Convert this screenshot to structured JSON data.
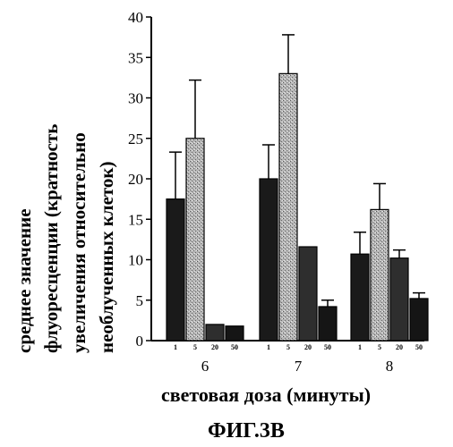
{
  "chart_data": {
    "type": "bar",
    "ylabel_lines": [
      "среднее значение",
      "флуоресценции (кратность",
      "увеличения относительно",
      "необлученных клеток)"
    ],
    "xlabel": "световая доза (минуты)",
    "caption": "ФИГ.3В",
    "ylim": [
      0,
      40
    ],
    "yticks": [
      0,
      5,
      10,
      15,
      20,
      25,
      30,
      35,
      40
    ],
    "categories": [
      "6",
      "7",
      "8"
    ],
    "sub_labels": [
      "1",
      "5",
      "20",
      "50"
    ],
    "series": [
      {
        "values": [
          17.5,
          20.0,
          10.7
        ],
        "errors": [
          5.8,
          4.2,
          2.7
        ]
      },
      {
        "values": [
          25.0,
          33.0,
          16.2
        ],
        "errors": [
          7.2,
          4.8,
          3.2
        ]
      },
      {
        "values": [
          2.0,
          11.6,
          10.2
        ],
        "errors": [
          0.0,
          0.0,
          1.0
        ]
      },
      {
        "values": [
          1.8,
          4.2,
          5.2
        ],
        "errors": [
          0.0,
          0.8,
          0.7
        ]
      }
    ],
    "colors": [
      "#1a1a1a",
      "#9a9a9a",
      "#2e2e2e",
      "#151515"
    ],
    "grid": false,
    "legend": "none"
  }
}
